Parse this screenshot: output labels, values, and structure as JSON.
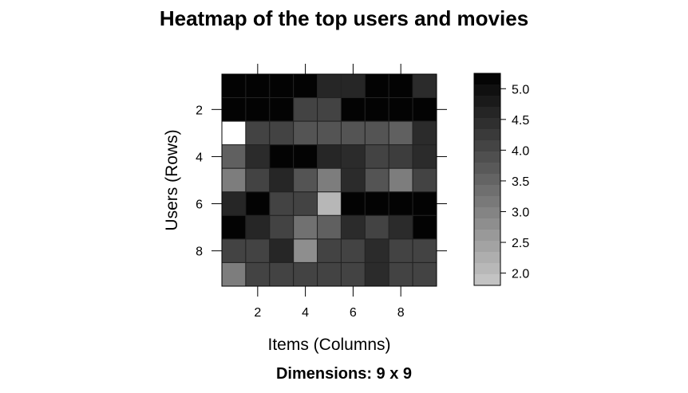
{
  "chart_data": {
    "type": "heatmap",
    "title": "Heatmap of the top users and movies",
    "subtitle": "Dimensions: 9 x 9",
    "xlabel": "Items (Columns)",
    "ylabel": "Users (Rows)",
    "x_ticks": [
      "2",
      "4",
      "6",
      "8"
    ],
    "y_ticks": [
      "2",
      "4",
      "6",
      "8"
    ],
    "rows": 9,
    "cols": 9,
    "zlim": [
      1.8,
      5.25
    ],
    "colorbar_ticks": [
      "5.0",
      "4.5",
      "4.0",
      "3.5",
      "3.0",
      "2.5",
      "2.0"
    ],
    "values": [
      [
        5.2,
        5.2,
        5.2,
        5.2,
        4.6,
        4.6,
        5.2,
        5.2,
        4.5
      ],
      [
        5.2,
        5.2,
        5.2,
        4.1,
        4.1,
        5.2,
        5.2,
        5.2,
        5.2
      ],
      [
        1.5,
        4.1,
        4.1,
        3.8,
        3.8,
        3.8,
        3.8,
        3.6,
        4.5
      ],
      [
        3.6,
        4.5,
        5.2,
        5.2,
        4.6,
        4.5,
        4.1,
        4.2,
        4.5
      ],
      [
        3.1,
        4.1,
        4.6,
        3.8,
        3.1,
        4.5,
        3.8,
        3.1,
        4.1
      ],
      [
        4.6,
        5.2,
        4.1,
        4.1,
        2.1,
        5.2,
        5.2,
        5.2,
        5.2
      ],
      [
        5.2,
        4.6,
        4.1,
        3.3,
        3.6,
        4.5,
        4.1,
        4.5,
        5.2
      ],
      [
        4.1,
        4.1,
        4.6,
        2.8,
        4.1,
        4.1,
        4.5,
        4.1,
        4.1
      ],
      [
        3.1,
        4.1,
        4.1,
        4.1,
        4.1,
        4.1,
        4.5,
        4.1,
        4.1
      ]
    ]
  }
}
